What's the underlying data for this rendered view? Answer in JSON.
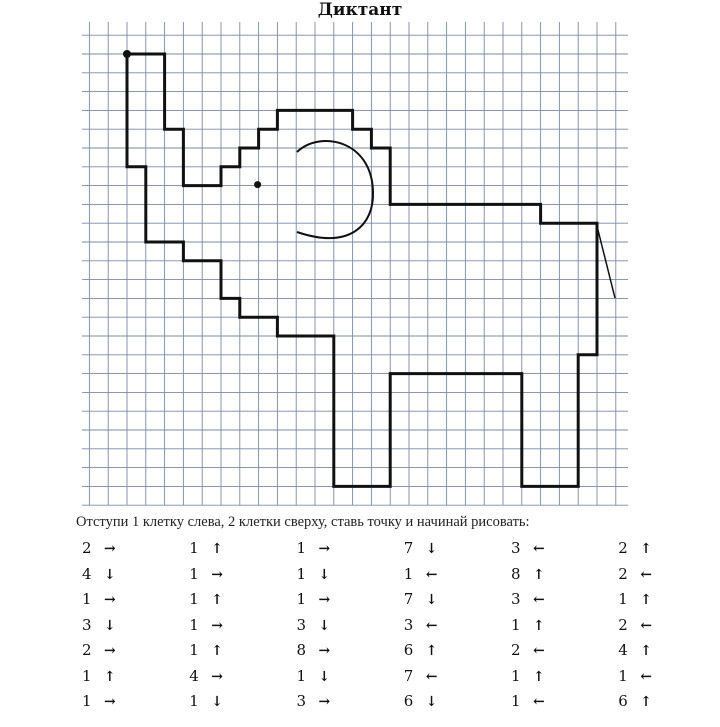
{
  "title": "Диктант",
  "instruction": "Отступи 1 клетку слева, 2 клетки сверху, ставь точку и начинай рисовать:",
  "arrow_glyphs": {
    "right": "→",
    "left": "←",
    "up": "↑",
    "down": "↓"
  },
  "columns": [
    [
      {
        "n": "2",
        "dir": "right"
      },
      {
        "n": "4",
        "dir": "down"
      },
      {
        "n": "1",
        "dir": "right"
      },
      {
        "n": "3",
        "dir": "down"
      },
      {
        "n": "2",
        "dir": "right"
      },
      {
        "n": "1",
        "dir": "up"
      },
      {
        "n": "1",
        "dir": "right"
      }
    ],
    [
      {
        "n": "1",
        "dir": "up"
      },
      {
        "n": "1",
        "dir": "right"
      },
      {
        "n": "1",
        "dir": "up"
      },
      {
        "n": "1",
        "dir": "right"
      },
      {
        "n": "1",
        "dir": "up"
      },
      {
        "n": "4",
        "dir": "right"
      },
      {
        "n": "1",
        "dir": "down"
      }
    ],
    [
      {
        "n": "1",
        "dir": "right"
      },
      {
        "n": "1",
        "dir": "down"
      },
      {
        "n": "1",
        "dir": "right"
      },
      {
        "n": "3",
        "dir": "down"
      },
      {
        "n": "8",
        "dir": "right"
      },
      {
        "n": "1",
        "dir": "down"
      },
      {
        "n": "3",
        "dir": "right"
      }
    ],
    [
      {
        "n": "7",
        "dir": "down"
      },
      {
        "n": "1",
        "dir": "left"
      },
      {
        "n": "7",
        "dir": "down"
      },
      {
        "n": "3",
        "dir": "left"
      },
      {
        "n": "6",
        "dir": "up"
      },
      {
        "n": "7",
        "dir": "left"
      },
      {
        "n": "6",
        "dir": "down"
      }
    ],
    [
      {
        "n": "3",
        "dir": "left"
      },
      {
        "n": "8",
        "dir": "up"
      },
      {
        "n": "3",
        "dir": "left"
      },
      {
        "n": "1",
        "dir": "up"
      },
      {
        "n": "2",
        "dir": "left"
      },
      {
        "n": "1",
        "dir": "up"
      },
      {
        "n": "1",
        "dir": "left"
      }
    ],
    [
      {
        "n": "2",
        "dir": "up"
      },
      {
        "n": "2",
        "dir": "left"
      },
      {
        "n": "1",
        "dir": "up"
      },
      {
        "n": "2",
        "dir": "left"
      },
      {
        "n": "4",
        "dir": "up"
      },
      {
        "n": "1",
        "dir": "left"
      },
      {
        "n": "6",
        "dir": "up"
      }
    ]
  ],
  "colors": {
    "grid": "#7b8aa6",
    "ink": "#111111"
  }
}
